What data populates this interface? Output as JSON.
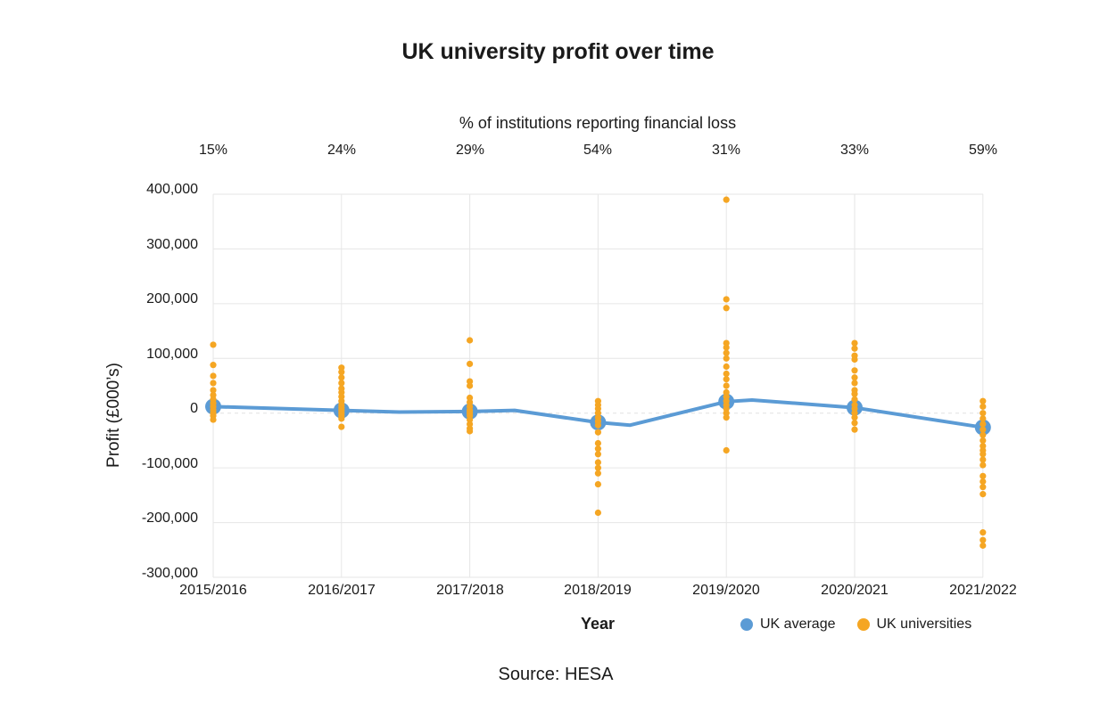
{
  "chart_data": {
    "type": "scatter",
    "title": "UK university profit over time",
    "top_axis_title": "% of institutions reporting financial loss",
    "xlabel": "Year",
    "ylabel": "Profit (£000’s)",
    "source": "Source: HESA",
    "categories": [
      "2015/2016",
      "2016/2017",
      "2017/2018",
      "2018/2019",
      "2019/2020",
      "2020/2021",
      "2021/2022"
    ],
    "loss_percentages": [
      "15%",
      "24%",
      "29%",
      "54%",
      "31%",
      "33%",
      "59%"
    ],
    "ylim": [
      -300000,
      400000
    ],
    "yticks": [
      400000,
      300000,
      200000,
      100000,
      0,
      -100000,
      -200000,
      -300000
    ],
    "ytick_labels": [
      "400,000",
      "300,000",
      "200,000",
      "100,000",
      "0",
      "-100,000",
      "-200,000",
      "-300,000"
    ],
    "grid": true,
    "legend_placement": "bottom-right",
    "colors": {
      "average": "#5b9bd5",
      "universities": "#f5a623",
      "grid": "#e6e6e6"
    },
    "series": [
      {
        "name": "UK average",
        "x": [
          0,
          1,
          1.45,
          2,
          2.35,
          3,
          3.25,
          4,
          4.2,
          5,
          6
        ],
        "values": [
          12000,
          5000,
          2000,
          3000,
          5000,
          -17000,
          -22000,
          21000,
          24000,
          10000,
          -26000
        ]
      },
      {
        "name": "UK universities",
        "points": [
          [
            0,
            125000
          ],
          [
            0,
            88000
          ],
          [
            0,
            68000
          ],
          [
            0,
            55000
          ],
          [
            0,
            42000
          ],
          [
            0,
            33000
          ],
          [
            0,
            25000
          ],
          [
            0,
            18000
          ],
          [
            0,
            12000
          ],
          [
            0,
            6000
          ],
          [
            0,
            0
          ],
          [
            0,
            -5000
          ],
          [
            0,
            -12000
          ],
          [
            1,
            83000
          ],
          [
            1,
            75000
          ],
          [
            1,
            65000
          ],
          [
            1,
            55000
          ],
          [
            1,
            45000
          ],
          [
            1,
            38000
          ],
          [
            1,
            30000
          ],
          [
            1,
            22000
          ],
          [
            1,
            15000
          ],
          [
            1,
            10000
          ],
          [
            1,
            5000
          ],
          [
            1,
            0
          ],
          [
            1,
            -5000
          ],
          [
            1,
            -10000
          ],
          [
            1,
            -25000
          ],
          [
            2,
            133000
          ],
          [
            2,
            90000
          ],
          [
            2,
            58000
          ],
          [
            2,
            50000
          ],
          [
            2,
            28000
          ],
          [
            2,
            20000
          ],
          [
            2,
            12000
          ],
          [
            2,
            5000
          ],
          [
            2,
            0
          ],
          [
            2,
            -5000
          ],
          [
            2,
            -12000
          ],
          [
            2,
            -20000
          ],
          [
            2,
            -28000
          ],
          [
            2,
            -33000
          ],
          [
            3,
            22000
          ],
          [
            3,
            15000
          ],
          [
            3,
            8000
          ],
          [
            3,
            0
          ],
          [
            3,
            -8000
          ],
          [
            3,
            -15000
          ],
          [
            3,
            -22000
          ],
          [
            3,
            -35000
          ],
          [
            3,
            -55000
          ],
          [
            3,
            -65000
          ],
          [
            3,
            -75000
          ],
          [
            3,
            -90000
          ],
          [
            3,
            -100000
          ],
          [
            3,
            -110000
          ],
          [
            3,
            -130000
          ],
          [
            3,
            -182000
          ],
          [
            4,
            390000
          ],
          [
            4,
            208000
          ],
          [
            4,
            192000
          ],
          [
            4,
            128000
          ],
          [
            4,
            120000
          ],
          [
            4,
            110000
          ],
          [
            4,
            100000
          ],
          [
            4,
            85000
          ],
          [
            4,
            72000
          ],
          [
            4,
            62000
          ],
          [
            4,
            50000
          ],
          [
            4,
            38000
          ],
          [
            4,
            30000
          ],
          [
            4,
            22000
          ],
          [
            4,
            15000
          ],
          [
            4,
            8000
          ],
          [
            4,
            0
          ],
          [
            4,
            -8000
          ],
          [
            4,
            -68000
          ],
          [
            5,
            128000
          ],
          [
            5,
            118000
          ],
          [
            5,
            105000
          ],
          [
            5,
            98000
          ],
          [
            5,
            78000
          ],
          [
            5,
            65000
          ],
          [
            5,
            55000
          ],
          [
            5,
            42000
          ],
          [
            5,
            35000
          ],
          [
            5,
            25000
          ],
          [
            5,
            15000
          ],
          [
            5,
            8000
          ],
          [
            5,
            0
          ],
          [
            5,
            -8000
          ],
          [
            5,
            -18000
          ],
          [
            5,
            -30000
          ],
          [
            6,
            22000
          ],
          [
            6,
            12000
          ],
          [
            6,
            0
          ],
          [
            6,
            -10000
          ],
          [
            6,
            -20000
          ],
          [
            6,
            -30000
          ],
          [
            6,
            -40000
          ],
          [
            6,
            -50000
          ],
          [
            6,
            -60000
          ],
          [
            6,
            -68000
          ],
          [
            6,
            -75000
          ],
          [
            6,
            -85000
          ],
          [
            6,
            -95000
          ],
          [
            6,
            -115000
          ],
          [
            6,
            -125000
          ],
          [
            6,
            -135000
          ],
          [
            6,
            -148000
          ],
          [
            6,
            -218000
          ],
          [
            6,
            -232000
          ],
          [
            6,
            -242000
          ]
        ]
      }
    ]
  }
}
